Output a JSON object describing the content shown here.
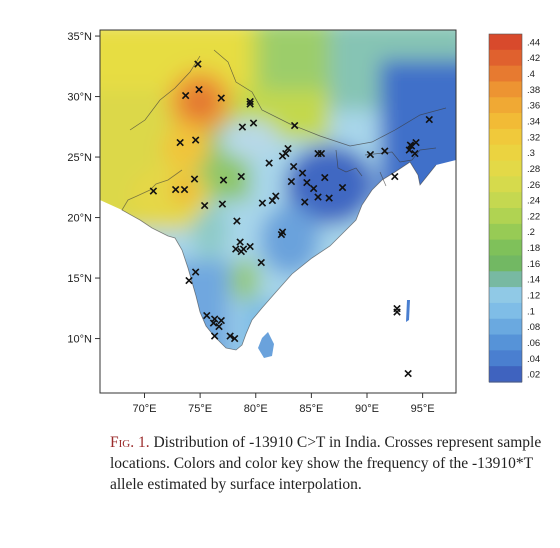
{
  "map": {
    "lat_labels": [
      "35°N",
      "30°N",
      "25°N",
      "20°N",
      "15°N",
      "10°N"
    ],
    "lat_values": [
      35,
      30,
      25,
      20,
      15,
      10
    ],
    "lon_labels": [
      "70°E",
      "75°E",
      "80°E",
      "85°E",
      "90°E",
      "95°E"
    ],
    "lon_values": [
      70,
      75,
      80,
      85,
      90,
      95
    ],
    "lon_range": [
      66,
      98
    ],
    "lat_range": [
      5.5,
      35.5
    ],
    "sample_marker": "×",
    "samples": [
      [
        74.8,
        32.7
      ],
      [
        73.7,
        30.1
      ],
      [
        74.9,
        30.6
      ],
      [
        76.9,
        29.9
      ],
      [
        79.5,
        29.4
      ],
      [
        79.5,
        29.6
      ],
      [
        73.2,
        26.2
      ],
      [
        74.6,
        26.4
      ],
      [
        78.8,
        27.5
      ],
      [
        79.8,
        27.8
      ],
      [
        83.5,
        27.6
      ],
      [
        70.8,
        22.2
      ],
      [
        72.8,
        22.3
      ],
      [
        73.6,
        22.3
      ],
      [
        74.5,
        23.2
      ],
      [
        77.1,
        23.1
      ],
      [
        78.7,
        23.4
      ],
      [
        77.0,
        21.1
      ],
      [
        75.4,
        21.0
      ],
      [
        81.2,
        24.5
      ],
      [
        82.7,
        25.3
      ],
      [
        82.9,
        25.7
      ],
      [
        82.4,
        25.1
      ],
      [
        83.4,
        24.2
      ],
      [
        83.2,
        23.0
      ],
      [
        84.2,
        23.7
      ],
      [
        85.6,
        25.3
      ],
      [
        85.9,
        25.3
      ],
      [
        86.2,
        23.3
      ],
      [
        87.8,
        22.5
      ],
      [
        84.6,
        22.9
      ],
      [
        85.2,
        22.4
      ],
      [
        84.4,
        21.3
      ],
      [
        85.6,
        21.7
      ],
      [
        86.6,
        21.6
      ],
      [
        81.8,
        21.8
      ],
      [
        81.5,
        21.4
      ],
      [
        80.6,
        21.2
      ],
      [
        82.4,
        18.8
      ],
      [
        82.3,
        18.6
      ],
      [
        78.3,
        19.7
      ],
      [
        78.6,
        18.0
      ],
      [
        78.2,
        17.4
      ],
      [
        78.9,
        17.4
      ],
      [
        78.7,
        17.2
      ],
      [
        79.5,
        17.6
      ],
      [
        80.5,
        16.3
      ],
      [
        74.6,
        15.5
      ],
      [
        74.0,
        14.8
      ],
      [
        75.6,
        11.9
      ],
      [
        76.3,
        11.6
      ],
      [
        76.9,
        11.5
      ],
      [
        76.2,
        11.3
      ],
      [
        76.7,
        11.0
      ],
      [
        76.3,
        10.2
      ],
      [
        77.7,
        10.2
      ],
      [
        78.1,
        10.0
      ],
      [
        90.3,
        25.2
      ],
      [
        91.6,
        25.5
      ],
      [
        92.5,
        23.4
      ],
      [
        93.8,
        25.6
      ],
      [
        94.0,
        25.9
      ],
      [
        94.4,
        26.2
      ],
      [
        93.9,
        26.0
      ],
      [
        94.3,
        25.3
      ],
      [
        95.6,
        28.1
      ],
      [
        92.7,
        12.5
      ],
      [
        92.7,
        12.2
      ],
      [
        93.7,
        7.1
      ]
    ]
  },
  "colorbar": {
    "labels": [
      ".44",
      ".42",
      ".4",
      ".38",
      ".36",
      ".34",
      ".32",
      ".3",
      ".28",
      ".26",
      ".24",
      ".22",
      ".2",
      ".18",
      ".16",
      ".14",
      ".12",
      ".1",
      ".08",
      ".06",
      ".04",
      ".02"
    ],
    "colors": [
      "#d84a2c",
      "#e0612e",
      "#e77a30",
      "#ed9432",
      "#f0a934",
      "#f2bb36",
      "#f0c93b",
      "#ebd340",
      "#e3d947",
      "#d6da4c",
      "#c5d850",
      "#b0d352",
      "#97cb55",
      "#7fc15a",
      "#72b863",
      "#78b9a2",
      "#90c9e6",
      "#7fbde7",
      "#6aa9e0",
      "#5693d8",
      "#4a7fd0",
      "#3f63bf"
    ]
  },
  "caption": {
    "label": "Fig. 1.",
    "text": "Distribution of -13910 C>T in India. Crosses represent sample locations. Colors and color key show the frequency of the -13910*T allele estimated by surface interpolation."
  }
}
